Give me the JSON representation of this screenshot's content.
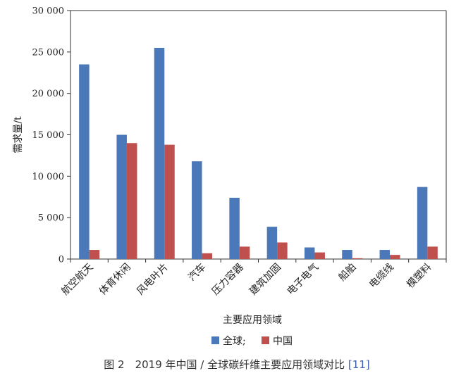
{
  "chart_data": {
    "type": "bar",
    "categories": [
      "航空航天",
      "体育休闲",
      "风电叶片",
      "汽车",
      "压力容器",
      "建筑加固",
      "电子电气",
      "船舶",
      "电缆线",
      "模塑料"
    ],
    "series": [
      {
        "name": "全球;",
        "color": "#4a78b8",
        "values": [
          23500,
          15000,
          25500,
          11800,
          7400,
          3900,
          1400,
          1100,
          1100,
          8700
        ]
      },
      {
        "name": "中国",
        "color": "#c0504d",
        "values": [
          1100,
          14000,
          13800,
          700,
          1500,
          2000,
          800,
          100,
          500,
          1500
        ]
      }
    ],
    "xlabel": "主要应用领域",
    "ylabel": "需求量/t",
    "ylim": [
      0,
      30000
    ],
    "yticks": [
      0,
      5000,
      10000,
      15000,
      20000,
      25000,
      30000
    ],
    "ytick_labels": [
      "0",
      "5 000",
      "10 000",
      "15 000",
      "20 000",
      "25 000",
      "30 000"
    ],
    "legend_position": "bottom-center",
    "grid": false
  },
  "caption": {
    "prefix": "图 2　2019 年中国 / 全球碳纤维主要应用领域对比",
    "ref": "[11]"
  }
}
